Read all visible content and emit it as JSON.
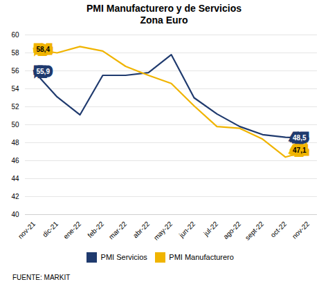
{
  "chart_data": {
    "type": "line",
    "title": "PMI Manufacturero y de Servicios\nZona Euro",
    "categories": [
      "nov-21",
      "dic-21",
      "ene-22",
      "feb-22",
      "mar-22",
      "abr-22",
      "may-22",
      "jun-22",
      "jul-22",
      "ago-22",
      "sept-22",
      "oct-22",
      "nov-22"
    ],
    "series": [
      {
        "name": "PMI Servicios",
        "color": "#1f3a6e",
        "values": [
          55.9,
          53.1,
          51.1,
          55.5,
          55.5,
          55.8,
          57.8,
          53.0,
          51.2,
          49.8,
          48.9,
          48.6,
          48.5
        ],
        "value_labels": [
          "55,9",
          null,
          null,
          null,
          null,
          null,
          null,
          null,
          null,
          null,
          null,
          null,
          "48,5"
        ]
      },
      {
        "name": "PMI Manufacturero",
        "color": "#f0b400",
        "values": [
          58.4,
          58.0,
          58.7,
          58.2,
          56.5,
          55.5,
          54.6,
          52.1,
          49.8,
          49.6,
          48.4,
          46.4,
          47.1
        ],
        "value_labels": [
          "58,4",
          null,
          null,
          null,
          null,
          null,
          null,
          null,
          null,
          null,
          null,
          null,
          "47,1"
        ]
      }
    ],
    "ylim": [
      40,
      60
    ],
    "yticks": [
      40,
      42,
      44,
      46,
      48,
      50,
      52,
      54,
      56,
      58,
      60
    ],
    "grid": true,
    "legend": "bottom",
    "caption": "FUENTE: MARKIT"
  }
}
